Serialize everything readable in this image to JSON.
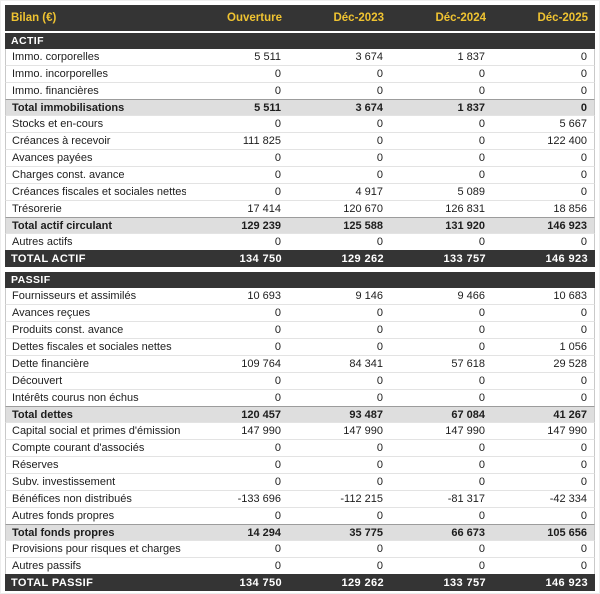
{
  "theme": {
    "dark_bg": "#343434",
    "accent": "#EFC331",
    "section_text": "#FFFFFF",
    "row_bg": "#FFFFFF",
    "text": "#1D1D1D",
    "side_border": "#C9C9C9",
    "divider": "#E3E3E3",
    "subtotal_bg": "#DEDEDE",
    "subtotal_border": "#9C9C9C",
    "total_text": "#FFFFFF"
  },
  "chart_data": {
    "type": "table",
    "title": "Bilan (€)",
    "columns": [
      "Ouverture",
      "Déc-2023",
      "Déc-2024",
      "Déc-2025"
    ],
    "sections": [
      {
        "title": "ACTIF",
        "rows": [
          {
            "label": "Immo. corporelles",
            "values": [
              5511,
              3674,
              1837,
              0
            ],
            "emphasis": "normal"
          },
          {
            "label": "Immo. incorporelles",
            "values": [
              0,
              0,
              0,
              0
            ],
            "emphasis": "normal"
          },
          {
            "label": "Immo. financières",
            "values": [
              0,
              0,
              0,
              0
            ],
            "emphasis": "normal"
          },
          {
            "label": "Total immobilisations",
            "values": [
              5511,
              3674,
              1837,
              0
            ],
            "emphasis": "subtotal"
          },
          {
            "label": "Stocks et en-cours",
            "values": [
              0,
              0,
              0,
              5667
            ],
            "emphasis": "normal"
          },
          {
            "label": "Créances à recevoir",
            "values": [
              111825,
              0,
              0,
              122400
            ],
            "emphasis": "normal"
          },
          {
            "label": "Avances payées",
            "values": [
              0,
              0,
              0,
              0
            ],
            "emphasis": "normal"
          },
          {
            "label": "Charges const. avance",
            "values": [
              0,
              0,
              0,
              0
            ],
            "emphasis": "normal"
          },
          {
            "label": "Créances fiscales et sociales nettes",
            "values": [
              0,
              4917,
              5089,
              0
            ],
            "emphasis": "normal"
          },
          {
            "label": "Trésorerie",
            "values": [
              17414,
              120670,
              126831,
              18856
            ],
            "emphasis": "normal"
          },
          {
            "label": "Total actif circulant",
            "values": [
              129239,
              125588,
              131920,
              146923
            ],
            "emphasis": "subtotal"
          },
          {
            "label": "Autres actifs",
            "values": [
              0,
              0,
              0,
              0
            ],
            "emphasis": "normal"
          },
          {
            "label": "TOTAL ACTIF",
            "values": [
              134750,
              129262,
              133757,
              146923
            ],
            "emphasis": "total"
          }
        ]
      },
      {
        "title": "PASSIF",
        "rows": [
          {
            "label": "Fournisseurs et assimilés",
            "values": [
              10693,
              9146,
              9466,
              10683
            ],
            "emphasis": "normal"
          },
          {
            "label": "Avances reçues",
            "values": [
              0,
              0,
              0,
              0
            ],
            "emphasis": "normal"
          },
          {
            "label": "Produits const. avance",
            "values": [
              0,
              0,
              0,
              0
            ],
            "emphasis": "normal"
          },
          {
            "label": "Dettes fiscales et sociales nettes",
            "values": [
              0,
              0,
              0,
              1056
            ],
            "emphasis": "normal"
          },
          {
            "label": "Dette financière",
            "values": [
              109764,
              84341,
              57618,
              29528
            ],
            "emphasis": "normal"
          },
          {
            "label": "Découvert",
            "values": [
              0,
              0,
              0,
              0
            ],
            "emphasis": "normal"
          },
          {
            "label": "Intérêts courus non échus",
            "values": [
              0,
              0,
              0,
              0
            ],
            "emphasis": "normal"
          },
          {
            "label": "Total dettes",
            "values": [
              120457,
              93487,
              67084,
              41267
            ],
            "emphasis": "subtotal"
          },
          {
            "label": "Capital social et primes d'émission",
            "values": [
              147990,
              147990,
              147990,
              147990
            ],
            "emphasis": "normal"
          },
          {
            "label": "Compte courant d'associés",
            "values": [
              0,
              0,
              0,
              0
            ],
            "emphasis": "normal"
          },
          {
            "label": "Réserves",
            "values": [
              0,
              0,
              0,
              0
            ],
            "emphasis": "normal"
          },
          {
            "label": "Subv. investissement",
            "values": [
              0,
              0,
              0,
              0
            ],
            "emphasis": "normal"
          },
          {
            "label": "Bénéfices non distribués",
            "values": [
              -133696,
              -112215,
              -81317,
              -42334
            ],
            "emphasis": "normal"
          },
          {
            "label": "Autres fonds propres",
            "values": [
              0,
              0,
              0,
              0
            ],
            "emphasis": "normal"
          },
          {
            "label": "Total fonds propres",
            "values": [
              14294,
              35775,
              66673,
              105656
            ],
            "emphasis": "subtotal"
          },
          {
            "label": "Provisions pour risques et charges",
            "values": [
              0,
              0,
              0,
              0
            ],
            "emphasis": "normal"
          },
          {
            "label": "Autres passifs",
            "values": [
              0,
              0,
              0,
              0
            ],
            "emphasis": "normal"
          },
          {
            "label": "TOTAL PASSIF",
            "values": [
              134750,
              129262,
              133757,
              146923
            ],
            "emphasis": "total"
          }
        ]
      }
    ]
  }
}
